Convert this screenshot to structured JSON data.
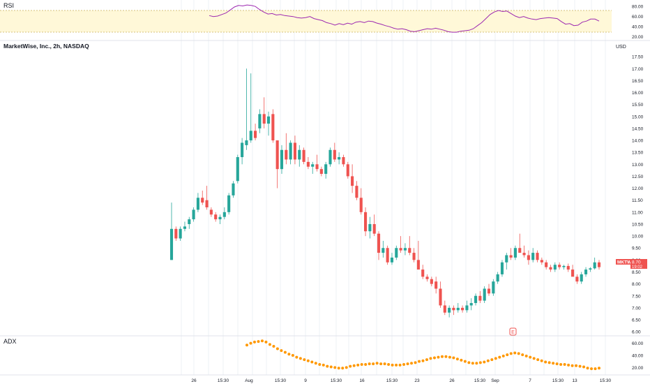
{
  "panes": {
    "rsi": {
      "title": "RSI",
      "ticks": [
        "80.00",
        "60.00",
        "40.00",
        "20.00"
      ]
    },
    "price": {
      "title": "MarketWise, Inc., 2h, NASDAQ",
      "currency": "USD",
      "ticks": [
        "17.50",
        "17.00",
        "16.50",
        "16.00",
        "15.50",
        "15.00",
        "14.50",
        "14.00",
        "13.50",
        "13.00",
        "12.50",
        "12.00",
        "11.50",
        "11.00",
        "10.50",
        "10.00",
        "9.50",
        "9.00",
        "8.50",
        "8.00",
        "7.50",
        "7.00",
        "6.50",
        "6.00"
      ],
      "marker_label": "E"
    },
    "adx": {
      "title": "ADX",
      "ticks": [
        "60.00",
        "40.00",
        "20.00"
      ]
    }
  },
  "xaxis": {
    "ticks": [
      "26",
      "15:30",
      "Aug",
      "15:30",
      "9",
      "15:30",
      "16",
      "15:30",
      "23",
      "26",
      "15:30",
      "Sep",
      "7",
      "15:30",
      "13",
      "15:30"
    ]
  },
  "price_tag": {
    "symbol": "MKTW",
    "price": "8.70",
    "countdown": "19:02"
  },
  "colors": {
    "up": "#26a69a",
    "down": "#ef5350",
    "rsi": "#9c27b0",
    "adx": "#ff9800",
    "band": "#fff8d8",
    "band_line": "#d4c27a",
    "grid": "#eef0f4",
    "text": "#131722"
  },
  "chart_data": [
    {
      "type": "candlestick",
      "title": "MarketWise, Inc., 2h, NASDAQ",
      "ylabel": "USD",
      "ylim": [
        5.8,
        18
      ],
      "last_price": 8.7,
      "ohlc": [
        [
          9.0,
          11.4,
          9.0,
          10.3
        ],
        [
          10.3,
          10.4,
          9.8,
          9.9
        ],
        [
          9.9,
          10.4,
          9.8,
          10.3
        ],
        [
          10.3,
          10.6,
          10.2,
          10.4
        ],
        [
          10.5,
          10.8,
          10.3,
          10.7
        ],
        [
          10.7,
          11.2,
          10.6,
          11.1
        ],
        [
          11.1,
          11.8,
          11.0,
          11.6
        ],
        [
          11.6,
          11.9,
          11.3,
          11.4
        ],
        [
          11.5,
          12.1,
          11.1,
          11.2
        ],
        [
          11.1,
          11.2,
          10.8,
          10.9
        ],
        [
          10.9,
          11.0,
          10.6,
          10.7
        ],
        [
          10.7,
          10.9,
          10.5,
          10.8
        ],
        [
          10.8,
          11.2,
          10.7,
          11.0
        ],
        [
          11.0,
          11.8,
          10.9,
          11.7
        ],
        [
          11.7,
          12.3,
          11.6,
          12.2
        ],
        [
          12.3,
          13.4,
          12.2,
          13.3
        ],
        [
          13.3,
          14.1,
          13.0,
          13.9
        ],
        [
          13.8,
          17.0,
          13.6,
          14.0
        ],
        [
          14.0,
          16.8,
          13.9,
          14.4
        ],
        [
          14.4,
          14.7,
          14.0,
          14.1
        ],
        [
          14.5,
          15.3,
          14.3,
          15.1
        ],
        [
          15.1,
          15.8,
          14.5,
          14.7
        ],
        [
          14.7,
          15.2,
          14.2,
          15.0
        ],
        [
          15.1,
          15.3,
          13.9,
          14.0
        ],
        [
          14.0,
          13.9,
          12.0,
          12.8
        ],
        [
          12.8,
          13.8,
          12.6,
          13.6
        ],
        [
          13.6,
          14.3,
          13.0,
          13.2
        ],
        [
          13.2,
          14.0,
          13.0,
          13.9
        ],
        [
          13.9,
          14.2,
          13.0,
          13.2
        ],
        [
          13.2,
          13.8,
          12.9,
          13.6
        ],
        [
          13.6,
          13.7,
          13.0,
          13.1
        ],
        [
          13.1,
          13.3,
          12.8,
          12.9
        ],
        [
          12.9,
          13.1,
          12.6,
          13.0
        ],
        [
          13.0,
          13.4,
          12.7,
          12.8
        ],
        [
          12.8,
          12.9,
          12.5,
          12.6
        ],
        [
          12.6,
          13.1,
          12.4,
          13.0
        ],
        [
          13.0,
          13.7,
          12.9,
          13.6
        ],
        [
          13.6,
          13.9,
          13.1,
          13.2
        ],
        [
          13.2,
          13.5,
          13.0,
          13.3
        ],
        [
          13.3,
          13.4,
          12.9,
          13.0
        ],
        [
          13.0,
          13.1,
          12.4,
          12.5
        ],
        [
          12.5,
          13.0,
          11.8,
          12.1
        ],
        [
          12.1,
          12.3,
          11.5,
          11.6
        ],
        [
          11.6,
          12.0,
          10.9,
          11.0
        ],
        [
          11.0,
          11.2,
          10.0,
          10.2
        ],
        [
          10.2,
          10.8,
          9.9,
          10.5
        ],
        [
          10.5,
          10.9,
          10.0,
          10.1
        ],
        [
          10.1,
          10.2,
          9.0,
          9.3
        ],
        [
          9.3,
          9.8,
          9.1,
          9.5
        ],
        [
          9.5,
          9.6,
          8.8,
          8.9
        ],
        [
          8.9,
          9.3,
          8.8,
          9.1
        ],
        [
          9.1,
          9.6,
          9.0,
          9.5
        ],
        [
          9.5,
          10.0,
          9.3,
          9.4
        ],
        [
          9.4,
          9.7,
          9.2,
          9.5
        ],
        [
          9.5,
          10.0,
          9.2,
          9.3
        ],
        [
          9.3,
          9.5,
          8.9,
          9.0
        ],
        [
          9.0,
          9.8,
          8.7,
          8.6
        ],
        [
          8.6,
          8.8,
          8.2,
          8.3
        ],
        [
          8.3,
          8.4,
          8.1,
          8.2
        ],
        [
          8.2,
          8.3,
          7.9,
          8.0
        ],
        [
          8.1,
          8.3,
          7.6,
          7.8
        ],
        [
          7.8,
          8.1,
          7.0,
          7.1
        ],
        [
          7.1,
          7.3,
          6.7,
          6.8
        ],
        [
          6.8,
          7.1,
          6.6,
          7.0
        ],
        [
          7.0,
          7.1,
          6.7,
          6.9
        ],
        [
          6.9,
          7.2,
          6.8,
          7.0
        ],
        [
          7.0,
          7.1,
          6.8,
          6.9
        ],
        [
          6.9,
          7.3,
          6.8,
          7.1
        ],
        [
          7.1,
          7.4,
          6.9,
          7.2
        ],
        [
          7.2,
          7.6,
          7.1,
          7.5
        ],
        [
          7.5,
          7.7,
          7.2,
          7.3
        ],
        [
          7.3,
          7.9,
          7.2,
          7.8
        ],
        [
          7.8,
          8.0,
          7.5,
          7.6
        ],
        [
          7.6,
          8.2,
          7.5,
          8.1
        ],
        [
          8.1,
          8.5,
          8.0,
          8.4
        ],
        [
          8.4,
          9.0,
          8.3,
          8.9
        ],
        [
          8.9,
          9.3,
          8.6,
          9.2
        ],
        [
          9.2,
          9.5,
          9.0,
          9.1
        ],
        [
          9.1,
          9.6,
          9.0,
          9.5
        ],
        [
          9.5,
          10.1,
          9.3,
          9.3
        ],
        [
          9.3,
          9.6,
          9.1,
          9.2
        ],
        [
          9.2,
          9.4,
          8.8,
          9.0
        ],
        [
          9.0,
          9.5,
          8.9,
          9.3
        ],
        [
          9.3,
          9.4,
          8.9,
          9.0
        ],
        [
          9.0,
          9.1,
          8.8,
          8.9
        ],
        [
          8.9,
          9.0,
          8.6,
          8.7
        ],
        [
          8.7,
          8.8,
          8.5,
          8.6
        ],
        [
          8.6,
          8.9,
          8.5,
          8.8
        ],
        [
          8.8,
          8.9,
          8.6,
          8.7
        ],
        [
          8.7,
          8.8,
          8.6,
          8.75
        ],
        [
          8.75,
          8.85,
          8.5,
          8.6
        ],
        [
          8.6,
          8.8,
          8.4,
          8.3
        ],
        [
          8.3,
          8.4,
          8.0,
          8.1
        ],
        [
          8.1,
          8.5,
          8.0,
          8.4
        ],
        [
          8.4,
          8.7,
          8.3,
          8.6
        ],
        [
          8.6,
          8.7,
          8.5,
          8.65
        ],
        [
          8.65,
          9.1,
          8.6,
          8.9
        ],
        [
          8.9,
          9.0,
          8.6,
          8.7
        ]
      ]
    },
    {
      "type": "line",
      "title": "RSI",
      "ylim": [
        14,
        90
      ],
      "band": [
        30,
        70
      ],
      "values": [
        62,
        60,
        61,
        64,
        67,
        73,
        79,
        82,
        81,
        83,
        82,
        80,
        74,
        69,
        65,
        66,
        63,
        64,
        62,
        61,
        60,
        58,
        57,
        58,
        60,
        56,
        54,
        52,
        48,
        46,
        43,
        46,
        44,
        47,
        45,
        49,
        50,
        48,
        51,
        50,
        47,
        45,
        42,
        40,
        37,
        35,
        36,
        34,
        31,
        30,
        32,
        34,
        36,
        35,
        37,
        35,
        33,
        30,
        29,
        29,
        31,
        32,
        33,
        36,
        42,
        48,
        56,
        64,
        69,
        72,
        70,
        71,
        66,
        61,
        58,
        60,
        57,
        55,
        54,
        56,
        57,
        58,
        57,
        56,
        50,
        45,
        46,
        42,
        43,
        49,
        51,
        55,
        55,
        51
      ],
      "line_color": "#9c27b0"
    },
    {
      "type": "scatter",
      "title": "ADX",
      "ylim": [
        10,
        70
      ],
      "values": [
        57,
        60,
        62,
        63,
        64,
        62,
        58,
        55,
        51,
        48,
        45,
        42,
        40,
        37,
        35,
        33,
        31,
        29,
        27,
        25,
        24,
        22,
        21,
        20,
        19,
        19,
        20,
        22,
        23,
        24,
        25,
        25,
        26,
        26,
        27,
        26,
        26,
        25,
        24,
        24,
        24,
        25,
        26,
        27,
        28,
        30,
        31,
        33,
        35,
        36,
        37,
        38,
        38,
        37,
        36,
        34,
        32,
        30,
        28,
        27,
        27,
        28,
        29,
        31,
        33,
        35,
        37,
        39,
        41,
        43,
        44,
        43,
        41,
        39,
        37,
        35,
        33,
        31,
        29,
        28,
        27,
        26,
        25,
        25,
        24,
        23,
        23,
        22,
        21,
        19,
        18,
        18,
        19
      ],
      "marker_color": "#ff9800"
    }
  ]
}
